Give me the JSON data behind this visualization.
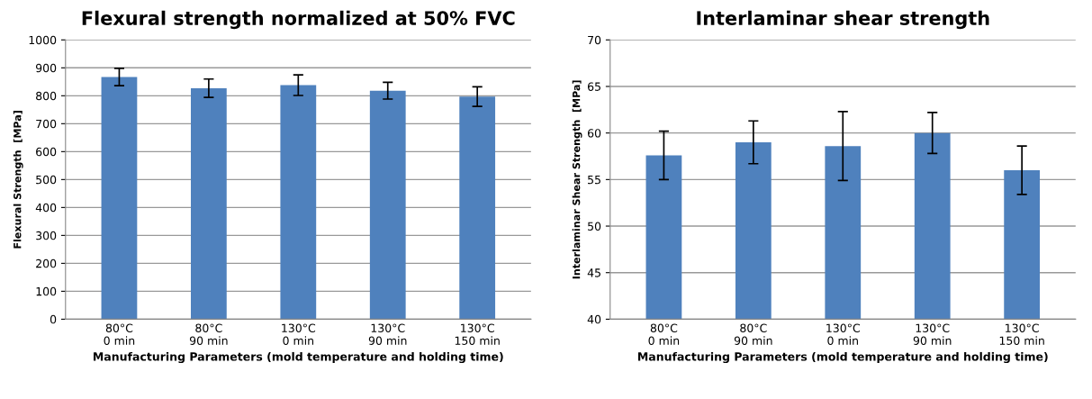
{
  "chart_data": [
    {
      "type": "bar",
      "title": "Flexural strength normalized at 50% FVC",
      "xlabel": "Manufacturing Parameters (mold temperature and holding time)",
      "ylabel": "Flexural Strength  [MPa]",
      "categories": [
        "80°C\n0 min",
        "80°C\n90 min",
        "130°C\n0 min",
        "130°C\n90 min",
        "130°C\n150 min"
      ],
      "values": [
        867,
        827,
        838,
        818,
        797
      ],
      "errors": [
        31,
        33,
        37,
        30,
        35
      ],
      "color": "#4f81bd",
      "ylim": [
        0,
        1000
      ],
      "yticks": [
        0,
        100,
        200,
        300,
        400,
        500,
        600,
        700,
        800,
        900,
        1000
      ],
      "grid": "y",
      "legend": false
    },
    {
      "type": "bar",
      "title": "Interlaminar shear strength",
      "xlabel": "Manufacturing Parameters (mold temperature and holding time)",
      "ylabel": "Interlaminar Shear Strength  [MPa]",
      "categories": [
        "80°C\n0 min",
        "80°C\n90 min",
        "130°C\n0 min",
        "130°C\n90 min",
        "130°C\n150 min"
      ],
      "values": [
        57.6,
        59.0,
        58.6,
        60.0,
        56.0
      ],
      "errors": [
        2.6,
        2.3,
        3.7,
        2.2,
        2.6
      ],
      "color": "#4f81bd",
      "ylim": [
        40,
        70
      ],
      "yticks": [
        40,
        45,
        50,
        55,
        60,
        65,
        70
      ],
      "grid": "y",
      "legend": false
    }
  ]
}
